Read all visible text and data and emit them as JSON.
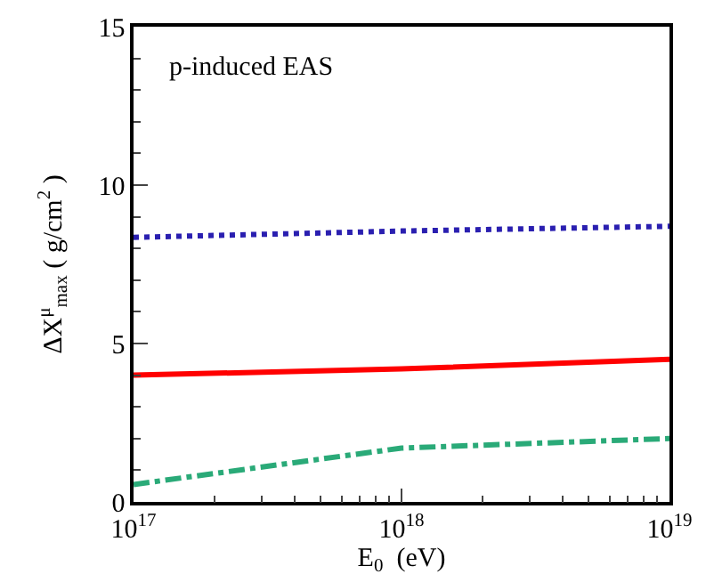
{
  "chart_data": {
    "type": "line",
    "xlabel": "E$_{0}$  (eV)",
    "ylabel": "ΔX$^{μ}$$_{max}$ ( g/cm$^{2}$ )",
    "annotations": [
      "p-induced EAS"
    ],
    "x": [
      1e+17,
      1e+18,
      1e+19
    ],
    "series": [
      {
        "color": "#2a1fb0",
        "line_style": "dotted",
        "values": [
          8.35,
          8.55,
          8.7
        ]
      },
      {
        "color": "#ff0000",
        "line_style": "solid",
        "values": [
          4.0,
          4.2,
          4.5
        ]
      },
      {
        "color": "#2aaa78",
        "line_style": "dashdot",
        "values": [
          0.55,
          1.7,
          2.0
        ]
      }
    ],
    "log": "x",
    "xlim": [
      1e+17,
      1e+19
    ],
    "xticks": [
      {
        "value": 1e+17,
        "label": "10$^{17}$"
      },
      {
        "value": 1e+18,
        "label": "10$^{18}$"
      },
      {
        "value": 1e+19,
        "label": "10$^{19}$"
      }
    ],
    "ylim": [
      0,
      15
    ],
    "yticks": [
      0,
      5,
      10,
      15
    ],
    "grid": false,
    "marker": "none"
  }
}
